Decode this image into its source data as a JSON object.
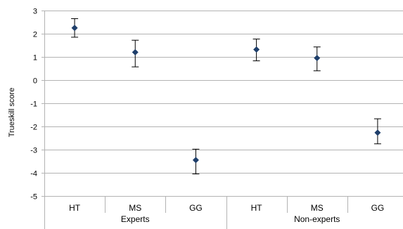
{
  "chart_data": {
    "type": "scatter",
    "title": "",
    "xlabel": "",
    "ylabel": "Trueskill score",
    "ylim": [
      -5,
      3
    ],
    "yticks": [
      3,
      2,
      1,
      0,
      -1,
      -2,
      -3,
      -4,
      -5
    ],
    "ytick_labels": [
      "3",
      "2",
      "1",
      "0",
      "-1",
      "-2",
      "-3",
      "-4",
      "-5"
    ],
    "grid": true,
    "legend": "none",
    "marker": "diamond",
    "marker_color": "#1f3f6b",
    "groups": [
      {
        "label": "Experts",
        "categories": [
          "HT",
          "MS",
          "GG"
        ]
      },
      {
        "label": "Non-experts",
        "categories": [
          "HT",
          "MS",
          "GG"
        ]
      }
    ],
    "points": [
      {
        "group": "Experts",
        "category": "HT",
        "value": 2.25,
        "err_low": 1.85,
        "err_high": 2.65
      },
      {
        "group": "Experts",
        "category": "MS",
        "value": 1.2,
        "err_low": 0.57,
        "err_high": 1.72
      },
      {
        "group": "Experts",
        "category": "GG",
        "value": -3.45,
        "err_low": -4.05,
        "err_high": -2.98
      },
      {
        "group": "Non-experts",
        "category": "HT",
        "value": 1.32,
        "err_low": 0.83,
        "err_high": 1.77
      },
      {
        "group": "Non-experts",
        "category": "MS",
        "value": 0.95,
        "err_low": 0.4,
        "err_high": 1.43
      },
      {
        "group": "Non-experts",
        "category": "GG",
        "value": -2.27,
        "err_low": -2.75,
        "err_high": -1.67
      }
    ]
  }
}
